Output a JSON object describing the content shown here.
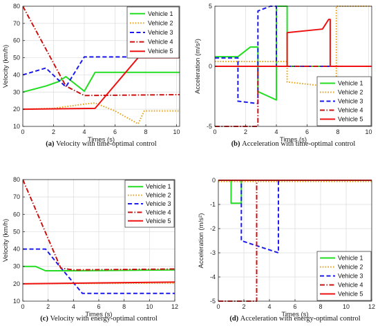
{
  "chart_data": [
    {
      "type": "line",
      "caption_letter": "(a)",
      "caption_text": "Velocity with time-optimal control",
      "xlabel": "Times (s)",
      "ylabel": "Velocity (km/h)",
      "xlim": [
        0,
        10.2
      ],
      "ylim": [
        10,
        80
      ],
      "xticks": [
        0,
        2,
        4,
        6,
        8,
        10
      ],
      "yticks": [
        10,
        20,
        30,
        40,
        50,
        60,
        70,
        80
      ],
      "grid": true,
      "legend": "top-right",
      "series": [
        {
          "name": "Vehicle 1",
          "color": "#22dd22",
          "dash": "solid",
          "x": [
            0,
            1.5,
            2.3,
            2.8,
            4,
            4.7,
            10.2
          ],
          "y": [
            30,
            33.5,
            36,
            39,
            30.5,
            41.5,
            41.5
          ]
        },
        {
          "name": "Vehicle 2",
          "color": "#e8a317",
          "dash": "dotted",
          "x": [
            0,
            2,
            4,
            4.7,
            6,
            7.5,
            7.9,
            10.2
          ],
          "y": [
            20,
            20.5,
            23,
            23.6,
            19,
            11.5,
            19,
            19
          ]
        },
        {
          "name": "Vehicle 3",
          "color": "#1a1aee",
          "dash": "dashed",
          "x": [
            0,
            1.5,
            2.8,
            4,
            10.2
          ],
          "y": [
            40,
            44,
            33,
            50.5,
            50.5
          ]
        },
        {
          "name": "Vehicle 4",
          "color": "#cc1111",
          "dash": "dashdot",
          "x": [
            0,
            2.8,
            4,
            10.2
          ],
          "y": [
            80,
            33.5,
            28,
            28.5
          ]
        },
        {
          "name": "Vehicle 5",
          "color": "#ee1111",
          "dash": "solid",
          "x": [
            0,
            4.7,
            7.5,
            10.2
          ],
          "y": [
            20,
            20.5,
            50,
            50
          ]
        }
      ]
    },
    {
      "type": "line",
      "caption_letter": "(b)",
      "caption_text": "Acceleration with time-optimal control",
      "xlabel": "Times (s)",
      "ylabel": "Acceleration (m/s²)",
      "xlim": [
        0,
        10.2
      ],
      "ylim": [
        -5,
        5
      ],
      "xticks": [
        0,
        2,
        4,
        6,
        8,
        10
      ],
      "yticks": [
        -5,
        0,
        5
      ],
      "grid": true,
      "legend": "bottom-right",
      "series": [
        {
          "name": "Vehicle 1",
          "color": "#22dd22",
          "dash": "solid",
          "x": [
            0,
            1.5,
            2.3,
            2.8,
            2.8,
            4,
            4,
            4.7,
            4.7,
            10.2
          ],
          "y": [
            0.8,
            0.8,
            1.6,
            1.6,
            -2.1,
            -2.8,
            5,
            5,
            0,
            0
          ]
        },
        {
          "name": "Vehicle 2",
          "color": "#e8a317",
          "dash": "dotted",
          "x": [
            0,
            4.7,
            4.7,
            7.5,
            7.5,
            7.9,
            7.9,
            10.2
          ],
          "y": [
            0.4,
            0.4,
            -1.3,
            -1.7,
            -1.7,
            -1.7,
            5,
            5
          ]
        },
        {
          "name": "Vehicle 3",
          "color": "#1a1aee",
          "dash": "dashed",
          "x": [
            0,
            1.5,
            1.5,
            2.8,
            2.8,
            3.6,
            4,
            4,
            10.2
          ],
          "y": [
            0.7,
            0.7,
            -2.9,
            -3.1,
            4.6,
            5,
            5,
            0,
            0
          ]
        },
        {
          "name": "Vehicle 4",
          "color": "#cc1111",
          "dash": "dashdot",
          "x": [
            0,
            2.8,
            2.8,
            10.2
          ],
          "y": [
            -5,
            -5,
            0,
            0
          ]
        },
        {
          "name": "Vehicle 5",
          "color": "#ee1111",
          "dash": "solid",
          "x": [
            0,
            4.7,
            4.7,
            7,
            7.4,
            7.5,
            7.5,
            10.2
          ],
          "y": [
            0,
            0,
            2.8,
            3.1,
            3.9,
            3.9,
            0,
            0
          ]
        }
      ]
    },
    {
      "type": "line",
      "caption_letter": "(c)",
      "caption_text": "Velocity with energy-optimal control",
      "xlabel": "Times (s)",
      "ylabel": "Velocity (km/h)",
      "xlim": [
        0,
        12
      ],
      "ylim": [
        10,
        80
      ],
      "xticks": [
        0,
        2,
        4,
        6,
        8,
        10,
        12
      ],
      "yticks": [
        10,
        20,
        30,
        40,
        50,
        60,
        70,
        80
      ],
      "grid": true,
      "legend": "top-right",
      "series": [
        {
          "name": "Vehicle 1",
          "color": "#22dd22",
          "dash": "solid",
          "x": [
            0,
            1,
            1.8,
            4,
            12
          ],
          "y": [
            30,
            30,
            27.5,
            27.5,
            28
          ]
        },
        {
          "name": "Vehicle 2",
          "color": "#e8a317",
          "dash": "dotted",
          "x": [
            0,
            12
          ],
          "y": [
            20,
            20.5
          ]
        },
        {
          "name": "Vehicle 3",
          "color": "#1a1aee",
          "dash": "dashed",
          "x": [
            0,
            1.8,
            2.8,
            4.7,
            12
          ],
          "y": [
            40,
            40,
            31,
            14.5,
            14.5
          ]
        },
        {
          "name": "Vehicle 4",
          "color": "#cc1111",
          "dash": "dashdot",
          "x": [
            0,
            3,
            4,
            12
          ],
          "y": [
            80,
            29,
            28,
            28.5
          ]
        },
        {
          "name": "Vehicle 5",
          "color": "#ee1111",
          "dash": "solid",
          "x": [
            0,
            12
          ],
          "y": [
            20,
            21
          ]
        }
      ]
    },
    {
      "type": "line",
      "caption_letter": "(d)",
      "caption_text": "Acceleration with energy-optimal control",
      "xlabel": "Times (s)",
      "ylabel": "Acceleration (m/s²)",
      "xlim": [
        0,
        12
      ],
      "ylim": [
        -5,
        0
      ],
      "xticks": [
        0,
        2,
        4,
        6,
        8,
        10,
        12
      ],
      "yticks": [
        -5,
        -4,
        -3,
        -2,
        -1,
        0
      ],
      "grid": true,
      "legend": "bottom-right",
      "series": [
        {
          "name": "Vehicle 1",
          "color": "#22dd22",
          "dash": "solid",
          "x": [
            0,
            1,
            1,
            1.8,
            1.8,
            12
          ],
          "y": [
            0,
            0,
            -0.95,
            -0.95,
            0,
            0
          ]
        },
        {
          "name": "Vehicle 2",
          "color": "#e8a317",
          "dash": "dotted",
          "x": [
            0,
            12
          ],
          "y": [
            -0.05,
            -0.05
          ]
        },
        {
          "name": "Vehicle 3",
          "color": "#1a1aee",
          "dash": "dashed",
          "x": [
            0,
            1.8,
            1.8,
            4.7,
            4.7,
            12
          ],
          "y": [
            0,
            0,
            -2.5,
            -3,
            0,
            0
          ]
        },
        {
          "name": "Vehicle 4",
          "color": "#cc1111",
          "dash": "dashdot",
          "x": [
            0,
            3,
            3,
            12
          ],
          "y": [
            -5,
            -5,
            0,
            0
          ]
        },
        {
          "name": "Vehicle 5",
          "color": "#ee1111",
          "dash": "solid",
          "x": [
            0,
            12
          ],
          "y": [
            0,
            0
          ]
        }
      ]
    }
  ]
}
